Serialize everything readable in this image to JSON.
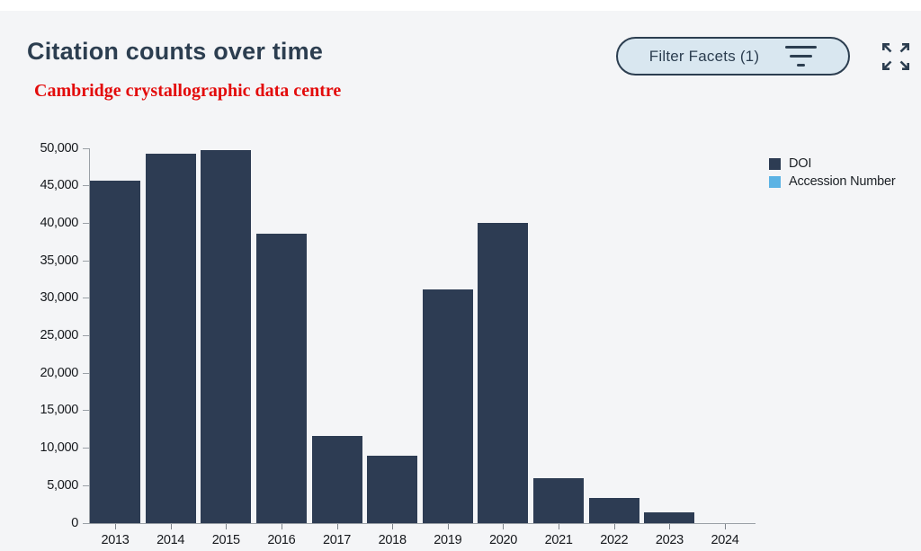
{
  "page": {
    "title": "Citation counts over time",
    "subtitle": "Cambridge crystallographic data centre"
  },
  "toolbar": {
    "filter_button_label": "Filter Facets (1)"
  },
  "colors": {
    "page_bg": "#f4f5f7",
    "title_navy": "#2c3e50",
    "subtitle_red": "#e30b0b",
    "button_bg": "#d9e7f0",
    "axis_line": "#9aa0a6",
    "bar_doi": "#2d3c53",
    "bar_accession": "#5cb3e4"
  },
  "legend": {
    "items": [
      {
        "label": "DOI",
        "color": "#2d3c53"
      },
      {
        "label": "Accession Number",
        "color": "#5cb3e4"
      }
    ]
  },
  "chart_data": {
    "type": "bar",
    "title": "Citation counts over time",
    "xlabel": "",
    "ylabel": "",
    "categories": [
      "2013",
      "2014",
      "2015",
      "2016",
      "2017",
      "2018",
      "2019",
      "2020",
      "2021",
      "2022",
      "2023",
      "2024"
    ],
    "series": [
      {
        "name": "DOI",
        "color": "#2d3c53",
        "values": [
          45700,
          49300,
          49800,
          38600,
          11600,
          9000,
          31200,
          40000,
          6000,
          3400,
          1400,
          0
        ]
      },
      {
        "name": "Accession Number",
        "color": "#5cb3e4",
        "values": [
          0,
          0,
          0,
          0,
          0,
          0,
          0,
          0,
          0,
          0,
          0,
          0
        ]
      }
    ],
    "ylim": [
      0,
      50000
    ],
    "ytick_step": 5000,
    "ytick_labels": [
      "0",
      "5,000",
      "10,000",
      "15,000",
      "20,000",
      "25,000",
      "30,000",
      "35,000",
      "40,000",
      "45,000",
      "50,000"
    ],
    "grid": false,
    "legend_position": "top-right"
  }
}
